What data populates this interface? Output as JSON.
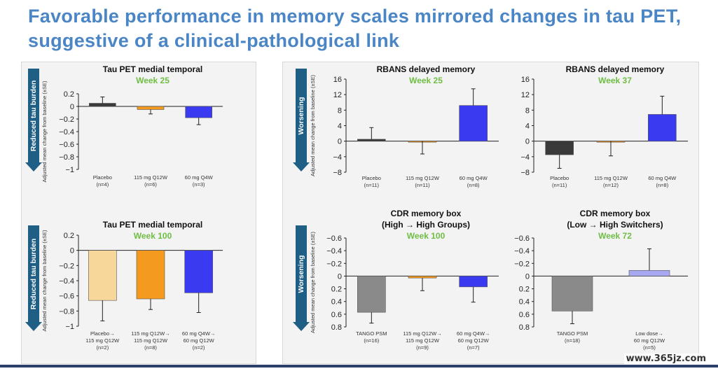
{
  "slide": {
    "title": "Favorable performance in memory scales mirrored changes in tau PET, suggestive of a clinical-pathological link",
    "watermark": "www.365jz.com"
  },
  "colors": {
    "title": "#4a86c5",
    "arrow": "#1f5f86",
    "week_text": "#6fbe44",
    "placebo": "#3a3a3a",
    "mg115": "#f39a1f",
    "mg60": "#3a3af0",
    "placebo_light": "#f7d79a",
    "tango": "#8a8a8a",
    "low_dose": "#a8a8f0"
  },
  "arrows": [
    {
      "label": "Reduced tau burden"
    },
    {
      "label": "Reduced tau burden"
    },
    {
      "label": "Worsening"
    },
    {
      "label": "Worsening"
    }
  ],
  "chart_data": [
    {
      "type": "bar",
      "title": "Tau PET medial temporal",
      "subtitle": "Week 25",
      "ylabel": "Adjusted mean change from baseline (±SE)",
      "ylim": [
        -1,
        0.2
      ],
      "yticks": [
        "0.2",
        "0",
        "−0.2",
        "−0.4",
        "−0.6",
        "−0.8",
        "−1"
      ],
      "categories": [
        [
          "Placebo",
          "(n=4)"
        ],
        [
          "115 mg Q12W",
          "(n=6)"
        ],
        [
          "60 mg Q4W",
          "(n=3)"
        ]
      ],
      "values": [
        0.05,
        -0.05,
        -0.18
      ],
      "errors": [
        0.1,
        0.07,
        0.11
      ],
      "bar_colors": [
        "#3a3a3a",
        "#f39a1f",
        "#3a3af0"
      ]
    },
    {
      "type": "bar",
      "title": "Tau PET medial temporal",
      "subtitle": "Week 100",
      "ylabel": "Adjusted mean change from baseline (±SE)",
      "ylim": [
        -1,
        0.2
      ],
      "yticks": [
        "0.2",
        "0",
        "−0.2",
        "−0.4",
        "−0.6",
        "−0.8",
        "−1"
      ],
      "categories": [
        [
          "Placebo→",
          "115 mg Q12W",
          "(n=2)"
        ],
        [
          "115 mg Q12W→",
          "115 mg Q12W",
          "(n=8)"
        ],
        [
          "60 mg Q4W→",
          "60 mg Q12W",
          "(n=2)"
        ]
      ],
      "values": [
        -0.66,
        -0.64,
        -0.56
      ],
      "errors": [
        0.27,
        0.14,
        0.26
      ],
      "bar_colors": [
        "#f7d79a",
        "#f39a1f",
        "#3a3af0"
      ]
    },
    {
      "type": "bar",
      "title": "RBANS delayed memory",
      "subtitle": "Week 25",
      "ylabel": "Adjusted mean change from baseline (±SE)",
      "ylim": [
        -8,
        16
      ],
      "yticks": [
        "16",
        "12",
        "8",
        "4",
        "0",
        "−4",
        "−8"
      ],
      "categories": [
        [
          "Placebo",
          "(n=11)"
        ],
        [
          "115 mg Q12W",
          "(n=11)"
        ],
        [
          "60 mg Q4W",
          "(n=8)"
        ]
      ],
      "values": [
        0.5,
        0,
        9.2
      ],
      "errors": [
        3,
        3.3,
        4.3
      ],
      "bar_colors": [
        "#3a3a3a",
        "#f39a1f",
        "#3a3af0"
      ]
    },
    {
      "type": "bar",
      "title": "RBANS delayed memory",
      "subtitle": "Week 37",
      "ylabel": "",
      "ylim": [
        -8,
        16
      ],
      "yticks": [
        "16",
        "12",
        "8",
        "4",
        "0",
        "−4",
        "−8"
      ],
      "categories": [
        [
          "Placebo",
          "(n=11)"
        ],
        [
          "115 mg Q12W",
          "(n=12)"
        ],
        [
          "60 mg Q4W",
          "(n=8)"
        ]
      ],
      "values": [
        -3.5,
        0,
        6.9
      ],
      "errors": [
        3.5,
        3.8,
        4.7
      ],
      "bar_colors": [
        "#3a3a3a",
        "#f39a1f",
        "#3a3af0"
      ]
    },
    {
      "type": "bar",
      "title": "CDR memory box",
      "subtitle": "(High → High Groups)",
      "week": "Week 100",
      "ylabel": "Adjusted mean change from baseline (±SE)",
      "ylim": [
        0.8,
        -0.6
      ],
      "yticks": [
        "−0.6",
        "−0.4",
        "−0.2",
        "0",
        "0.2",
        "0.4",
        "0.6",
        "0.8"
      ],
      "categories": [
        [
          "TANGO PSM",
          "(n=16)"
        ],
        [
          "115 mg Q12W→",
          "115 mg Q12W",
          "(n=9)"
        ],
        [
          "60 mg Q4W→",
          "60 mg Q12W",
          "(n=7)"
        ]
      ],
      "values": [
        0.57,
        0.03,
        0.17
      ],
      "errors": [
        0.17,
        0.2,
        0.24
      ],
      "bar_colors": [
        "#8a8a8a",
        "#f39a1f",
        "#3a3af0"
      ]
    },
    {
      "type": "bar",
      "title": "CDR memory box",
      "subtitle": "(Low → High Switchers)",
      "week": "Week 72",
      "ylabel": "",
      "ylim": [
        0.8,
        -0.6
      ],
      "yticks": [
        "−0.6",
        "−0.4",
        "−0.2",
        "0",
        "0.2",
        "0.4",
        "0.6",
        "0.8"
      ],
      "categories": [
        [
          "TANGO PSM",
          "(n=18)"
        ],
        [
          "Low dose→",
          "60 mg Q12W",
          "(n=5)"
        ]
      ],
      "values": [
        0.55,
        -0.09
      ],
      "errors": [
        0.2,
        0.34
      ],
      "bar_colors": [
        "#8a8a8a",
        "#a8a8f0"
      ]
    }
  ]
}
